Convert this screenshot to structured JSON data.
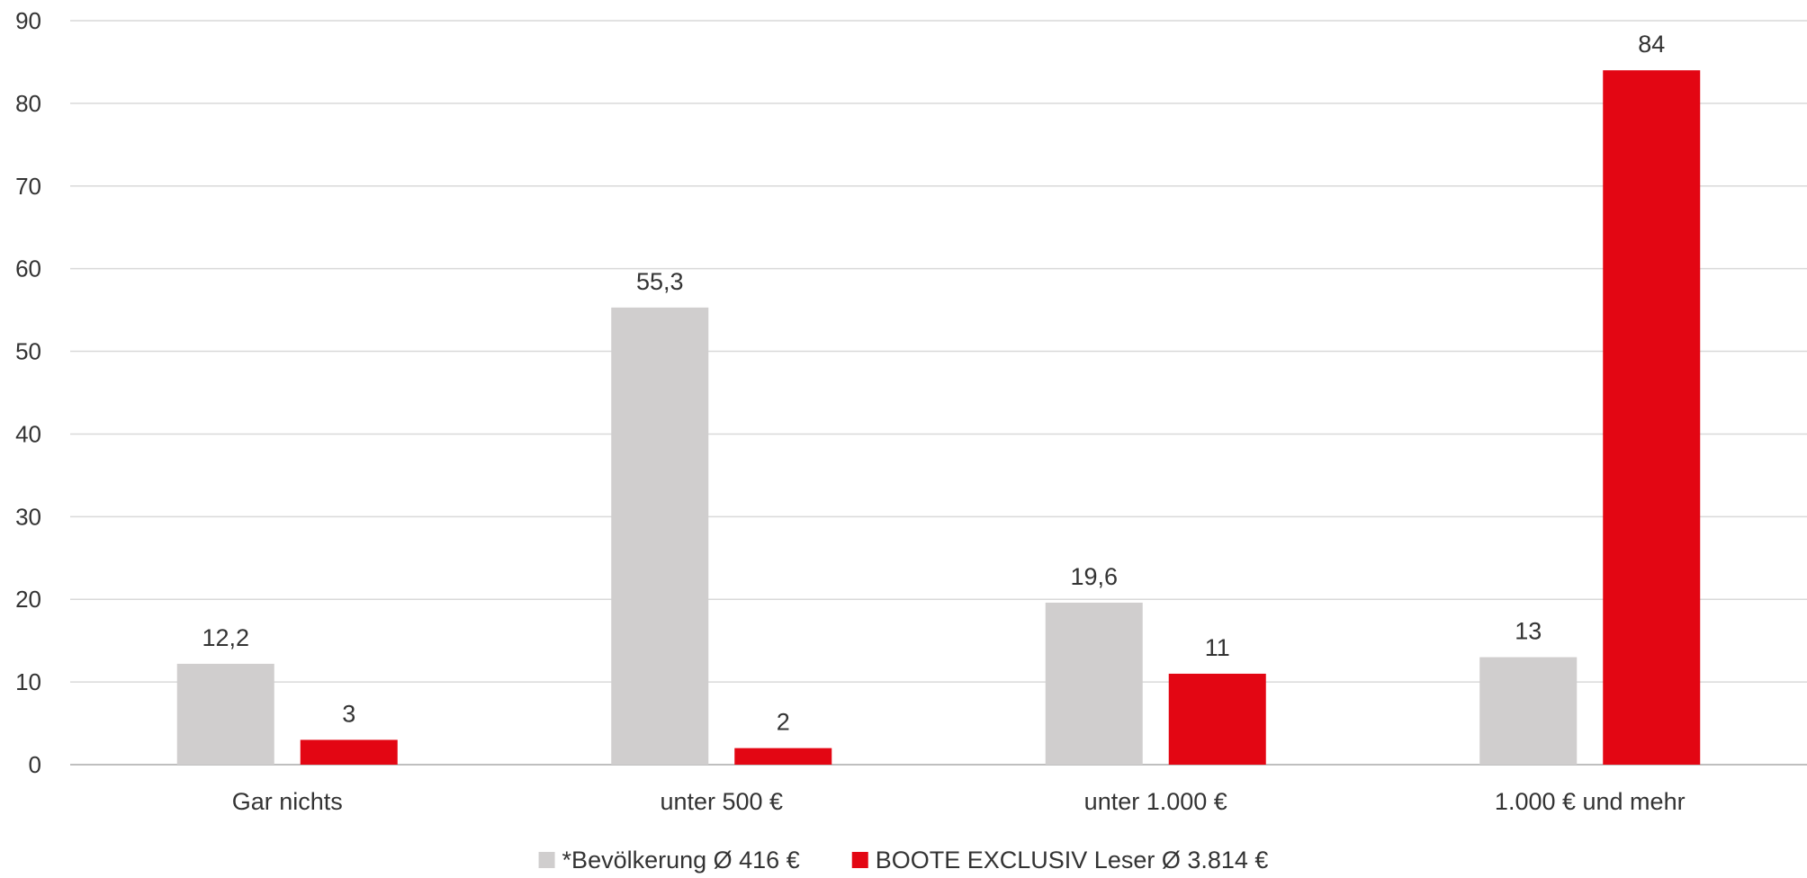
{
  "chart_data": {
    "type": "bar",
    "title": "",
    "xlabel": "",
    "ylabel": "",
    "ylim": [
      0,
      90
    ],
    "y_ticks": [
      "0",
      "10",
      "20",
      "30",
      "40",
      "50",
      "60",
      "70",
      "80",
      "90"
    ],
    "grid": true,
    "legend_position": "bottom",
    "categories": [
      "Gar nichts",
      "unter 500 €",
      "unter 1.000 €",
      "1.000 € und mehr"
    ],
    "series": [
      {
        "name": "*Bevölkerung Ø 416 €",
        "color": "#d0cece",
        "values": [
          12.2,
          55.3,
          19.6,
          13
        ],
        "labels": [
          "12,2",
          "55,3",
          "19,6",
          "13"
        ]
      },
      {
        "name": "BOOTE EXCLUSIV Leser Ø 3.814 €",
        "color": "#e30613",
        "values": [
          3,
          2,
          11,
          84
        ],
        "labels": [
          "3",
          "2",
          "11",
          "84"
        ]
      }
    ]
  }
}
